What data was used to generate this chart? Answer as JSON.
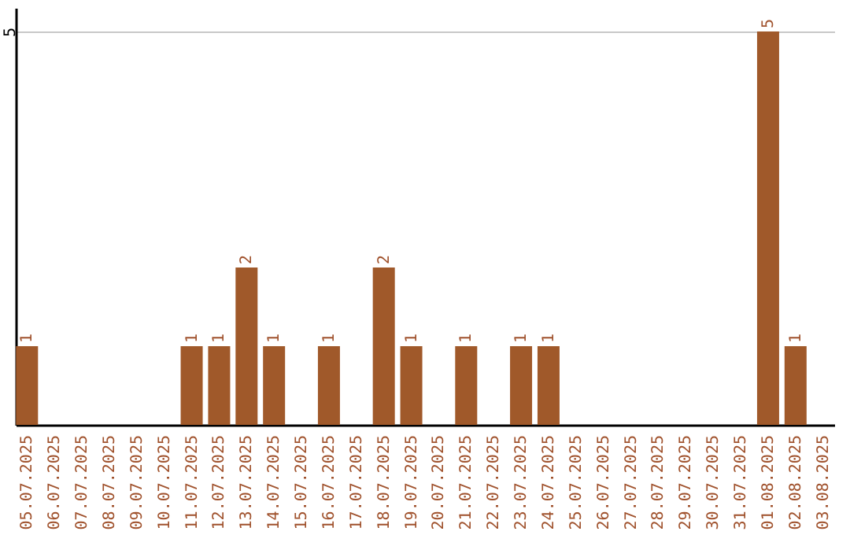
{
  "chart_data": {
    "type": "bar",
    "categories": [
      "05.07.2025",
      "06.07.2025",
      "07.07.2025",
      "08.07.2025",
      "09.07.2025",
      "10.07.2025",
      "11.07.2025",
      "12.07.2025",
      "13.07.2025",
      "14.07.2025",
      "15.07.2025",
      "16.07.2025",
      "17.07.2025",
      "18.07.2025",
      "19.07.2025",
      "20.07.2025",
      "21.07.2025",
      "22.07.2025",
      "23.07.2025",
      "24.07.2025",
      "25.07.2025",
      "26.07.2025",
      "27.07.2025",
      "28.07.2025",
      "29.07.2025",
      "30.07.2025",
      "31.07.2025",
      "01.08.2025",
      "02.08.2025",
      "03.08.2025"
    ],
    "values": [
      1,
      0,
      0,
      0,
      0,
      0,
      1,
      1,
      2,
      1,
      0,
      1,
      0,
      2,
      1,
      0,
      1,
      0,
      1,
      1,
      0,
      0,
      0,
      0,
      0,
      0,
      0,
      5,
      1,
      0
    ],
    "value_labels": [
      "1",
      null,
      null,
      null,
      null,
      null,
      "1",
      "1",
      "2",
      "1",
      null,
      "1",
      null,
      "2",
      "1",
      null,
      "1",
      null,
      "1",
      "1",
      null,
      null,
      null,
      null,
      null,
      null,
      null,
      "5",
      "1",
      null
    ],
    "color": "#a0592a",
    "ylim": [
      0,
      5.3
    ],
    "yticks": [
      5
    ],
    "grid": "y"
  }
}
